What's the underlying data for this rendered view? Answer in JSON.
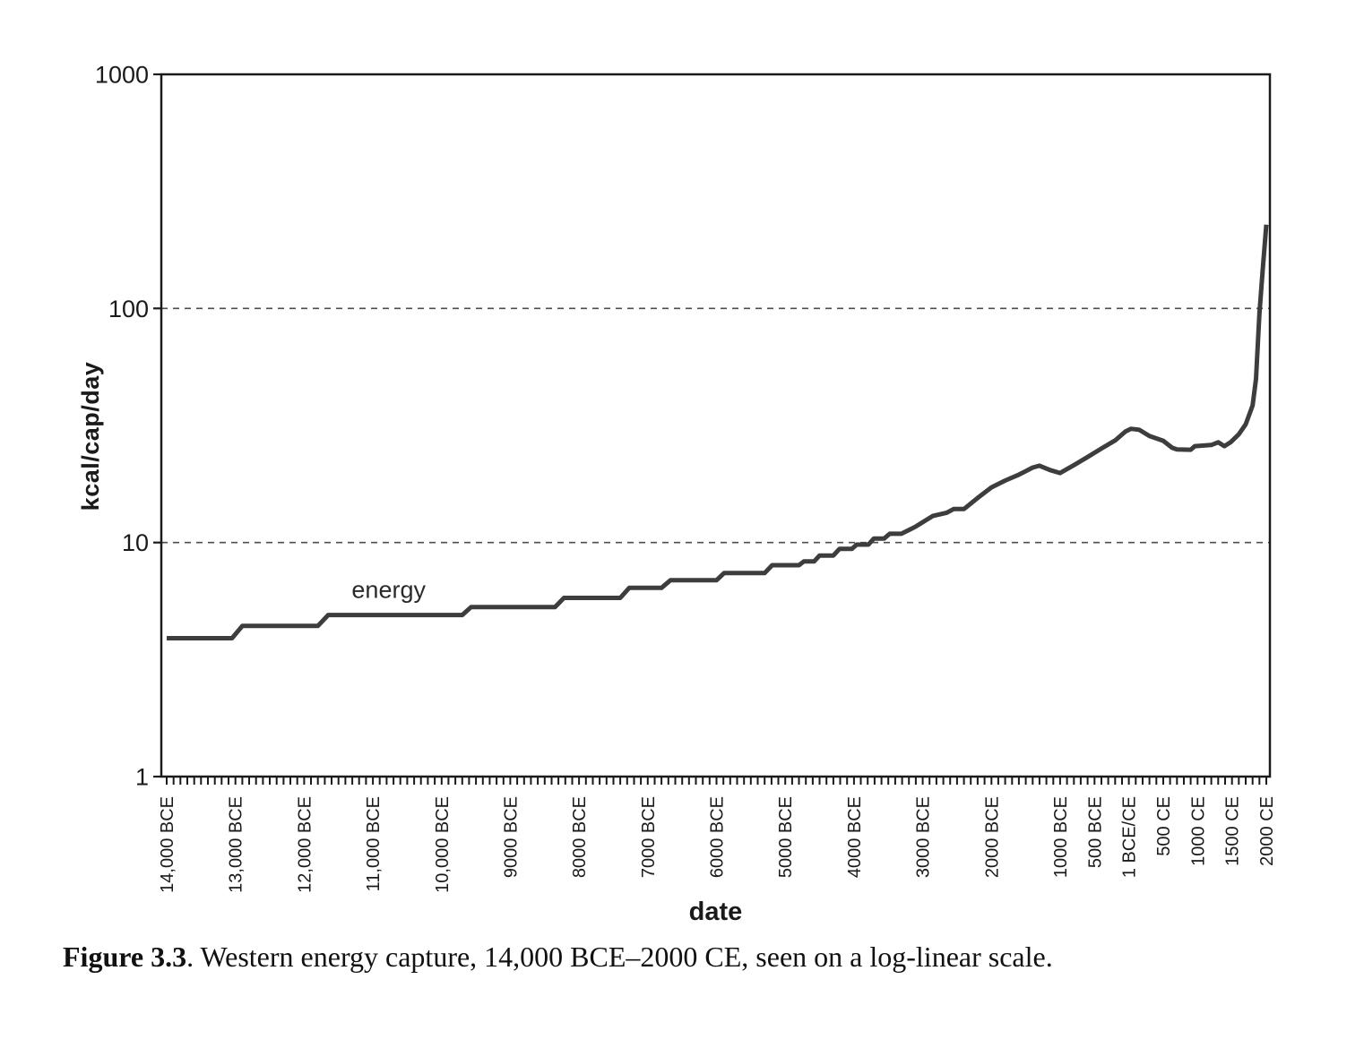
{
  "figure": {
    "caption_bold": "Figure 3.3",
    "caption_rest": ". Western energy capture, 14,000 BCE–2000 CE, seen on a log-linear scale."
  },
  "chart_data": {
    "type": "line",
    "title": "",
    "xlabel": "date",
    "ylabel": "kcal/cap/day",
    "yscale": "log",
    "ylim": [
      1,
      1000
    ],
    "xlim": [
      -14000,
      2000
    ],
    "grid": "horizontal dashed lines at y=10 and y=100",
    "gridlines": [
      10,
      100
    ],
    "legend_position": "inline label above line at left-center",
    "minor_tick_step_years": 100,
    "yticks": [
      {
        "value": 1,
        "label": "1"
      },
      {
        "value": 10,
        "label": "10"
      },
      {
        "value": 100,
        "label": "100"
      },
      {
        "value": 1000,
        "label": "1000"
      }
    ],
    "xticks": [
      {
        "date": -14000,
        "label": "14,000 BCE"
      },
      {
        "date": -13000,
        "label": "13,000 BCE"
      },
      {
        "date": -12000,
        "label": "12,000 BCE"
      },
      {
        "date": -11000,
        "label": "11,000 BCE"
      },
      {
        "date": -10000,
        "label": "10,000 BCE"
      },
      {
        "date": -9000,
        "label": "9000 BCE"
      },
      {
        "date": -8000,
        "label": "8000 BCE"
      },
      {
        "date": -7000,
        "label": "7000 BCE"
      },
      {
        "date": -6000,
        "label": "6000 BCE"
      },
      {
        "date": -5000,
        "label": "5000 BCE"
      },
      {
        "date": -4000,
        "label": "4000 BCE"
      },
      {
        "date": -3000,
        "label": "3000 BCE"
      },
      {
        "date": -2000,
        "label": "2000 BCE"
      },
      {
        "date": -1000,
        "label": "1000 BCE"
      },
      {
        "date": -500,
        "label": "500 BCE"
      },
      {
        "date": 1,
        "label": "1 BCE/CE"
      },
      {
        "date": 500,
        "label": "500 CE"
      },
      {
        "date": 1000,
        "label": "1000 CE"
      },
      {
        "date": 1500,
        "label": "1500 CE"
      },
      {
        "date": 2000,
        "label": "2000 CE"
      }
    ],
    "series": [
      {
        "name": "energy",
        "label_anchor": {
          "date": -10770,
          "value": 5.8
        },
        "points": [
          [
            -14000,
            3.9
          ],
          [
            -13050,
            3.9
          ],
          [
            -12900,
            4.4
          ],
          [
            -11800,
            4.4
          ],
          [
            -11650,
            4.9
          ],
          [
            -9700,
            4.9
          ],
          [
            -9570,
            5.3
          ],
          [
            -8350,
            5.3
          ],
          [
            -8220,
            5.8
          ],
          [
            -7400,
            5.8
          ],
          [
            -7270,
            6.4
          ],
          [
            -6800,
            6.4
          ],
          [
            -6670,
            6.9
          ],
          [
            -6000,
            6.9
          ],
          [
            -5890,
            7.4
          ],
          [
            -5300,
            7.4
          ],
          [
            -5190,
            8.0
          ],
          [
            -4800,
            8.0
          ],
          [
            -4730,
            8.3
          ],
          [
            -4580,
            8.3
          ],
          [
            -4500,
            8.8
          ],
          [
            -4300,
            8.8
          ],
          [
            -4210,
            9.4
          ],
          [
            -4030,
            9.4
          ],
          [
            -3960,
            9.8
          ],
          [
            -3790,
            9.8
          ],
          [
            -3710,
            10.4
          ],
          [
            -3560,
            10.4
          ],
          [
            -3480,
            10.9
          ],
          [
            -3310,
            10.9
          ],
          [
            -3100,
            11.7
          ],
          [
            -2850,
            13.0
          ],
          [
            -2650,
            13.4
          ],
          [
            -2550,
            13.9
          ],
          [
            -2400,
            13.9
          ],
          [
            -2200,
            15.5
          ],
          [
            -2000,
            17.2
          ],
          [
            -1800,
            18.4
          ],
          [
            -1600,
            19.5
          ],
          [
            -1400,
            20.9
          ],
          [
            -1300,
            21.3
          ],
          [
            -1150,
            20.4
          ],
          [
            -1000,
            19.8
          ],
          [
            -800,
            21.4
          ],
          [
            -600,
            23.2
          ],
          [
            -400,
            25.2
          ],
          [
            -200,
            27.3
          ],
          [
            -50,
            29.8
          ],
          [
            30,
            30.6
          ],
          [
            150,
            30.3
          ],
          [
            300,
            28.5
          ],
          [
            500,
            27.2
          ],
          [
            630,
            25.4
          ],
          [
            700,
            25.0
          ],
          [
            900,
            24.9
          ],
          [
            960,
            25.8
          ],
          [
            1200,
            26.1
          ],
          [
            1300,
            26.8
          ],
          [
            1390,
            25.8
          ],
          [
            1480,
            26.8
          ],
          [
            1600,
            29.0
          ],
          [
            1700,
            32.0
          ],
          [
            1800,
            38.5
          ],
          [
            1850,
            50
          ],
          [
            1900,
            95
          ],
          [
            1950,
            150
          ],
          [
            2000,
            228
          ]
        ]
      }
    ],
    "colors": {
      "line": "#3d3d3d",
      "axis": "#1a1a1a",
      "grid": "#4d4d4d",
      "text": "#1a1a1a",
      "background": "#ffffff"
    }
  }
}
